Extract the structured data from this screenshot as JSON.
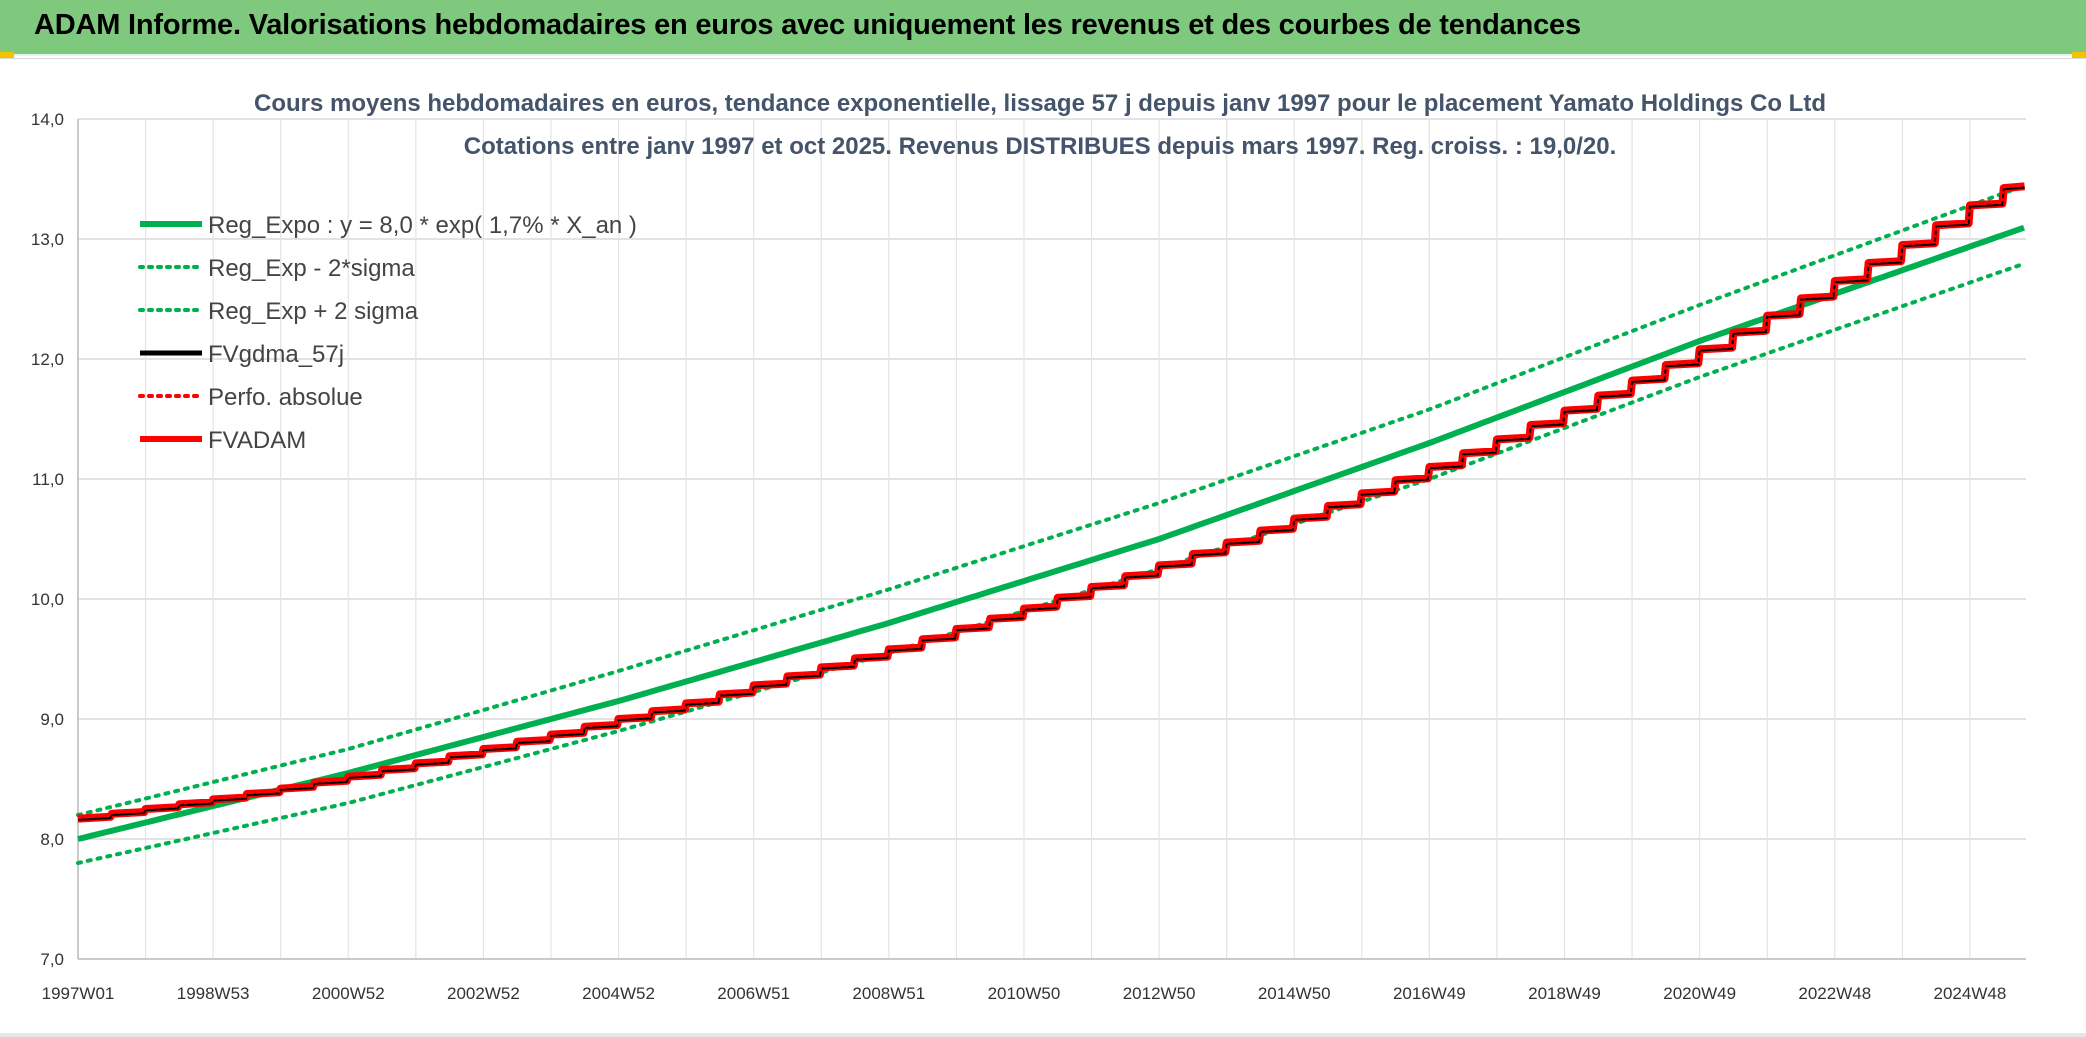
{
  "banner": {
    "title": "ADAM Informe. Valorisations hebdomadaires en euros avec uniquement les revenus et des courbes de tendances"
  },
  "colors": {
    "banner": "#7fc97f",
    "trend": "#00b050",
    "actual": "#ff0000",
    "gdma": "#000000",
    "grid": "#d9d9d9"
  },
  "chart_data": {
    "type": "line",
    "title": "Cours moyens hebdomadaires en euros, tendance exponentielle, lissage 57 j depuis janv 1997 pour le placement Yamato Holdings Co Ltd",
    "subtitle": "Cotations entre janv 1997 et oct 2025. Revenus DISTRIBUES depuis mars 1997. Reg. croiss. : 19,0/20.",
    "xlabel": "",
    "ylabel": "",
    "ylim": [
      7.0,
      14.0
    ],
    "xlim": [
      1997.0,
      2025.83
    ],
    "y_ticks": [
      "7,0",
      "8,0",
      "9,0",
      "10,0",
      "11,0",
      "12,0",
      "13,0",
      "14,0"
    ],
    "x_ticks": [
      "1997W01",
      "1998W53",
      "2000W52",
      "2002W52",
      "2004W52",
      "2006W51",
      "2008W51",
      "2010W50",
      "2012W50",
      "2014W50",
      "2016W49",
      "2018W49",
      "2020W49",
      "2022W48",
      "2024W48"
    ],
    "grid": true,
    "legend_position": "top-left",
    "legend": [
      {
        "label": "Reg_Expo : y = 8,0 * exp( 1,7% *  X_an )",
        "style": "solid-thick",
        "color": "#00b050"
      },
      {
        "label": "Reg_Exp - 2*sigma",
        "style": "dotted",
        "color": "#00b050"
      },
      {
        "label": "Reg_Exp + 2 sigma",
        "style": "dotted",
        "color": "#00b050"
      },
      {
        "label": "FVgdma_57j",
        "style": "solid",
        "color": "#000000"
      },
      {
        "label": "Perfo. absolue",
        "style": "dotted",
        "color": "#ff0000"
      },
      {
        "label": "FVADAM",
        "style": "solid-thick",
        "color": "#ff0000"
      }
    ],
    "series": [
      {
        "name": "Reg_Expo : y = 8,0 * exp( 1,7% *  X_an )",
        "x": [
          1997.0,
          2001.0,
          2005.0,
          2009.0,
          2013.0,
          2017.0,
          2021.0,
          2025.83
        ],
        "values": [
          8.0,
          8.55,
          9.15,
          9.8,
          10.5,
          11.3,
          12.15,
          13.1
        ]
      },
      {
        "name": "Reg_Exp - 2*sigma",
        "x": [
          1997.0,
          2001.0,
          2005.0,
          2009.0,
          2013.0,
          2017.0,
          2021.0,
          2025.83
        ],
        "values": [
          7.8,
          8.3,
          8.9,
          9.55,
          10.25,
          11.0,
          11.85,
          12.8
        ]
      },
      {
        "name": "Reg_Exp + 2 sigma",
        "x": [
          1997.0,
          2001.0,
          2005.0,
          2009.0,
          2013.0,
          2017.0,
          2021.0,
          2025.83
        ],
        "values": [
          8.2,
          8.75,
          9.4,
          10.08,
          10.8,
          11.58,
          12.45,
          13.45
        ]
      },
      {
        "name": "FVADAM",
        "x": [
          1997.0,
          1998.0,
          1999.0,
          2000.0,
          2001.0,
          2002.0,
          2003.0,
          2004.0,
          2005.0,
          2006.0,
          2007.0,
          2008.0,
          2009.0,
          2010.0,
          2011.0,
          2012.0,
          2013.0,
          2014.0,
          2015.0,
          2016.0,
          2017.0,
          2018.0,
          2019.0,
          2020.0,
          2021.0,
          2022.0,
          2023.0,
          2024.0,
          2025.0,
          2025.83
        ],
        "values": [
          8.17,
          8.25,
          8.33,
          8.42,
          8.52,
          8.63,
          8.75,
          8.87,
          9.0,
          9.13,
          9.28,
          9.43,
          9.58,
          9.75,
          9.92,
          10.1,
          10.28,
          10.47,
          10.67,
          10.88,
          11.1,
          11.33,
          11.57,
          11.82,
          12.08,
          12.36,
          12.65,
          12.95,
          13.28,
          13.52
        ]
      }
    ]
  }
}
